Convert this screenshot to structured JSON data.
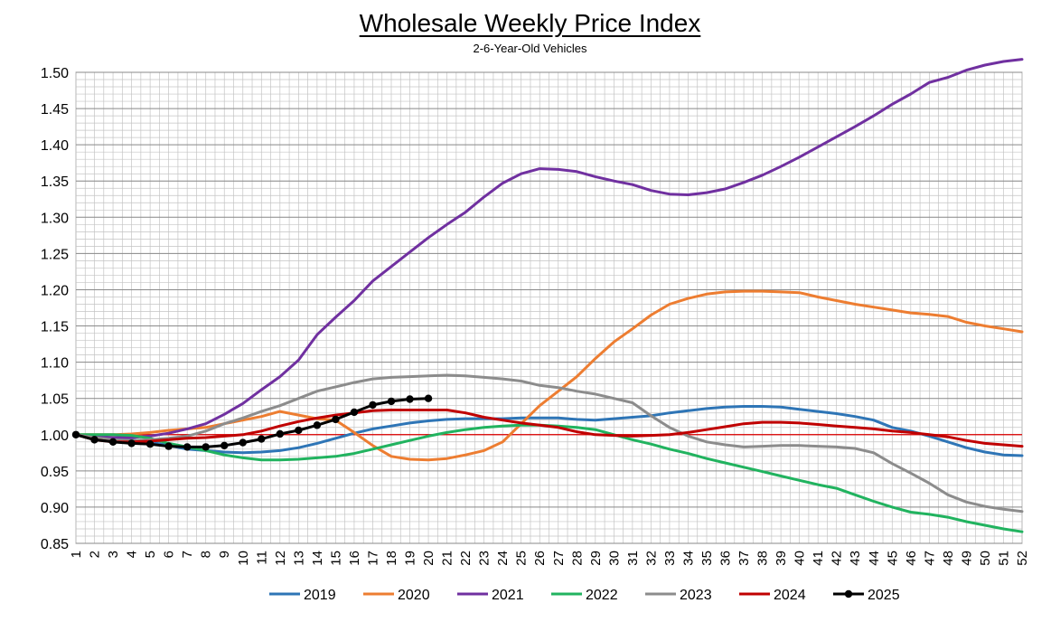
{
  "chart_data": {
    "type": "line",
    "title": "Wholesale Weekly Price Index",
    "subtitle": "2-6-Year-Old Vehicles",
    "xlabel": "",
    "ylabel": "",
    "ylim": [
      0.85,
      1.5
    ],
    "yticks": [
      "0.85",
      "0.90",
      "0.95",
      "1.00",
      "1.05",
      "1.10",
      "1.15",
      "1.20",
      "1.25",
      "1.30",
      "1.35",
      "1.40",
      "1.45",
      "1.50"
    ],
    "x": [
      1,
      2,
      3,
      4,
      5,
      6,
      7,
      8,
      9,
      10,
      11,
      12,
      13,
      14,
      15,
      16,
      17,
      18,
      19,
      20,
      21,
      22,
      23,
      24,
      25,
      26,
      27,
      28,
      29,
      30,
      31,
      32,
      33,
      34,
      35,
      36,
      37,
      38,
      39,
      40,
      41,
      42,
      43,
      44,
      45,
      46,
      47,
      48,
      49,
      50,
      51,
      52
    ],
    "grid": true,
    "reference_line": 1.0,
    "legend_position": "bottom",
    "colors": {
      "2019": "#2e75b6",
      "2020": "#ed7d31",
      "2021": "#7030a0",
      "2022": "#21b35f",
      "2023": "#8c8c8c",
      "2024": "#c00000",
      "2025": "#000000",
      "reference": "#e00000"
    },
    "series": [
      {
        "name": "2019",
        "values": [
          1.0,
          0.998,
          0.995,
          0.993,
          0.99,
          0.985,
          0.98,
          0.978,
          0.976,
          0.975,
          0.976,
          0.978,
          0.982,
          0.988,
          0.995,
          1.002,
          1.008,
          1.012,
          1.016,
          1.019,
          1.021,
          1.022,
          1.022,
          1.022,
          1.023,
          1.023,
          1.023,
          1.021,
          1.02,
          1.022,
          1.024,
          1.026,
          1.03,
          1.033,
          1.036,
          1.038,
          1.039,
          1.039,
          1.038,
          1.035,
          1.032,
          1.029,
          1.025,
          1.02,
          1.01,
          1.005,
          0.998,
          0.99,
          0.982,
          0.976,
          0.972,
          0.971
        ]
      },
      {
        "name": "2020",
        "values": [
          1.0,
          1.0,
          1.0,
          1.001,
          1.003,
          1.006,
          1.008,
          1.01,
          1.015,
          1.02,
          1.025,
          1.032,
          1.027,
          1.022,
          1.02,
          1.003,
          0.985,
          0.97,
          0.966,
          0.965,
          0.967,
          0.972,
          0.978,
          0.99,
          1.015,
          1.04,
          1.06,
          1.08,
          1.105,
          1.128,
          1.146,
          1.165,
          1.18,
          1.188,
          1.194,
          1.197,
          1.198,
          1.198,
          1.197,
          1.196,
          1.19,
          1.185,
          1.18,
          1.176,
          1.172,
          1.168,
          1.166,
          1.163,
          1.155,
          1.15,
          1.146,
          1.142
        ]
      },
      {
        "name": "2021",
        "values": [
          1.0,
          0.998,
          0.996,
          0.996,
          0.998,
          1.002,
          1.008,
          1.015,
          1.028,
          1.043,
          1.062,
          1.08,
          1.103,
          1.138,
          1.162,
          1.185,
          1.212,
          1.232,
          1.252,
          1.272,
          1.29,
          1.307,
          1.328,
          1.347,
          1.36,
          1.367,
          1.366,
          1.363,
          1.356,
          1.35,
          1.345,
          1.337,
          1.332,
          1.331,
          1.334,
          1.339,
          1.348,
          1.358,
          1.37,
          1.383,
          1.397,
          1.411,
          1.425,
          1.44,
          1.456,
          1.47,
          1.486,
          1.493,
          1.503,
          1.51,
          1.515,
          1.518
        ]
      },
      {
        "name": "2022",
        "values": [
          1.0,
          1.0,
          1.0,
          0.999,
          0.995,
          0.988,
          0.983,
          0.978,
          0.972,
          0.968,
          0.965,
          0.965,
          0.966,
          0.968,
          0.97,
          0.974,
          0.98,
          0.986,
          0.992,
          0.998,
          1.003,
          1.007,
          1.01,
          1.012,
          1.013,
          1.013,
          1.012,
          1.01,
          1.007,
          1.0,
          0.993,
          0.987,
          0.98,
          0.974,
          0.967,
          0.961,
          0.955,
          0.949,
          0.943,
          0.937,
          0.931,
          0.926,
          0.917,
          0.908,
          0.9,
          0.893,
          0.89,
          0.886,
          0.88,
          0.875,
          0.87,
          0.866
        ]
      },
      {
        "name": "2023",
        "values": [
          1.0,
          0.996,
          0.993,
          0.992,
          0.993,
          0.995,
          0.998,
          1.005,
          1.015,
          1.023,
          1.032,
          1.04,
          1.05,
          1.06,
          1.066,
          1.072,
          1.077,
          1.079,
          1.08,
          1.081,
          1.082,
          1.081,
          1.079,
          1.077,
          1.074,
          1.068,
          1.065,
          1.06,
          1.056,
          1.05,
          1.044,
          1.026,
          1.01,
          0.998,
          0.99,
          0.986,
          0.983,
          0.984,
          0.985,
          0.985,
          0.984,
          0.983,
          0.981,
          0.975,
          0.96,
          0.947,
          0.933,
          0.917,
          0.907,
          0.901,
          0.897,
          0.894
        ]
      },
      {
        "name": "2024",
        "values": [
          1.0,
          0.993,
          0.99,
          0.99,
          0.991,
          0.993,
          0.995,
          0.996,
          0.998,
          1.0,
          1.005,
          1.012,
          1.018,
          1.023,
          1.027,
          1.03,
          1.033,
          1.034,
          1.034,
          1.034,
          1.034,
          1.03,
          1.024,
          1.02,
          1.016,
          1.013,
          1.01,
          1.004,
          1.0,
          0.999,
          0.998,
          0.999,
          1.0,
          1.003,
          1.007,
          1.011,
          1.015,
          1.017,
          1.017,
          1.016,
          1.014,
          1.012,
          1.01,
          1.008,
          1.005,
          1.003,
          1.0,
          0.997,
          0.992,
          0.988,
          0.986,
          0.984
        ]
      },
      {
        "name": "2025",
        "values": [
          1.0,
          0.993,
          0.99,
          0.988,
          0.987,
          0.984,
          0.983,
          0.983,
          0.985,
          0.989,
          0.994,
          1.001,
          1.006,
          1.013,
          1.021,
          1.031,
          1.041,
          1.046,
          1.049,
          1.05,
          null,
          null,
          null,
          null,
          null,
          null,
          null,
          null,
          null,
          null,
          null,
          null,
          null,
          null,
          null,
          null,
          null,
          null,
          null,
          null,
          null,
          null,
          null,
          null,
          null,
          null,
          null,
          null,
          null,
          null,
          null,
          null
        ]
      }
    ]
  }
}
